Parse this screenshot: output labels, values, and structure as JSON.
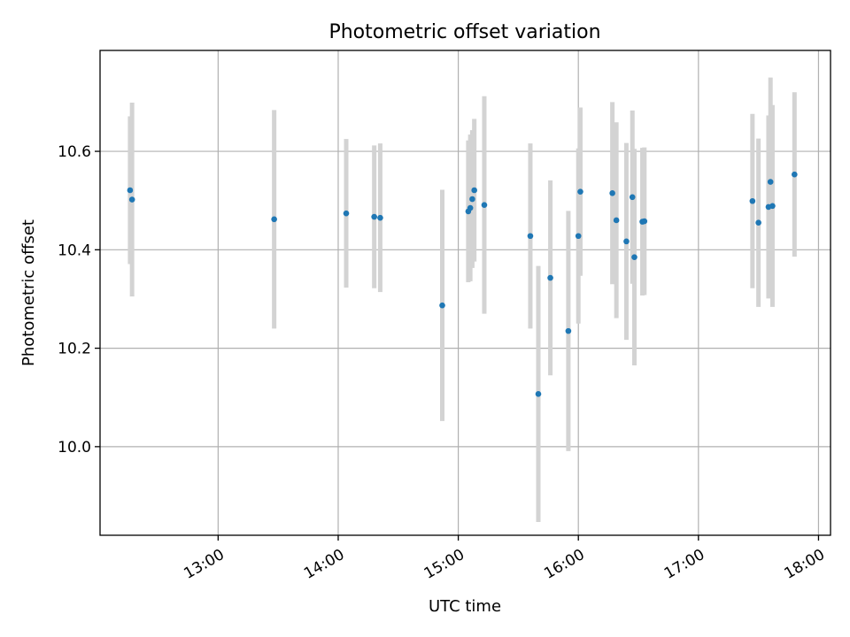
{
  "chart_data": {
    "type": "scatter",
    "title": "Photometric offset variation",
    "xlabel": "UTC time",
    "ylabel": "Photometric offset",
    "xlim": [
      "12:01",
      "18:06"
    ],
    "ylim": [
      9.82,
      10.805
    ],
    "xticks": [
      "13:00",
      "14:00",
      "15:00",
      "16:00",
      "17:00",
      "18:00"
    ],
    "yticks": [
      "10.0",
      "10.2",
      "10.4",
      "10.6"
    ],
    "grid": true,
    "colors": {
      "point": "#1f77b4",
      "errorbar": "#d3d3d3"
    },
    "points": [
      {
        "t": "12:16",
        "y": 10.521,
        "err": 0.15
      },
      {
        "t": "12:17",
        "y": 10.502,
        "err": 0.197
      },
      {
        "t": "13:28",
        "y": 10.462,
        "err": 0.222
      },
      {
        "t": "14:04",
        "y": 10.474,
        "err": 0.151
      },
      {
        "t": "14:18",
        "y": 10.467,
        "err": 0.145
      },
      {
        "t": "14:21",
        "y": 10.465,
        "err": 0.151
      },
      {
        "t": "14:52",
        "y": 10.287,
        "err": 0.235
      },
      {
        "t": "15:05",
        "y": 10.478,
        "err": 0.144
      },
      {
        "t": "15:06",
        "y": 10.485,
        "err": 0.149
      },
      {
        "t": "15:07",
        "y": 10.503,
        "err": 0.14
      },
      {
        "t": "15:08",
        "y": 10.521,
        "err": 0.145
      },
      {
        "t": "15:13",
        "y": 10.491,
        "err": 0.221
      },
      {
        "t": "15:36",
        "y": 10.428,
        "err": 0.188
      },
      {
        "t": "15:40",
        "y": 10.107,
        "err": 0.26
      },
      {
        "t": "15:46",
        "y": 10.343,
        "err": 0.198
      },
      {
        "t": "15:55",
        "y": 10.235,
        "err": 0.244
      },
      {
        "t": "16:00",
        "y": 10.428,
        "err": 0.178
      },
      {
        "t": "16:01",
        "y": 10.518,
        "err": 0.171
      },
      {
        "t": "16:17",
        "y": 10.515,
        "err": 0.185
      },
      {
        "t": "16:19",
        "y": 10.46,
        "err": 0.199
      },
      {
        "t": "16:24",
        "y": 10.417,
        "err": 0.2
      },
      {
        "t": "16:27",
        "y": 10.507,
        "err": 0.176
      },
      {
        "t": "16:28",
        "y": 10.385,
        "err": 0.22
      },
      {
        "t": "16:32",
        "y": 10.457,
        "err": 0.15
      },
      {
        "t": "16:33",
        "y": 10.458,
        "err": 0.15
      },
      {
        "t": "17:27",
        "y": 10.499,
        "err": 0.177
      },
      {
        "t": "17:30",
        "y": 10.455,
        "err": 0.171
      },
      {
        "t": "17:35",
        "y": 10.487,
        "err": 0.186
      },
      {
        "t": "17:36",
        "y": 10.538,
        "err": 0.212
      },
      {
        "t": "17:37",
        "y": 10.489,
        "err": 0.205
      },
      {
        "t": "17:48",
        "y": 10.553,
        "err": 0.167
      }
    ]
  }
}
